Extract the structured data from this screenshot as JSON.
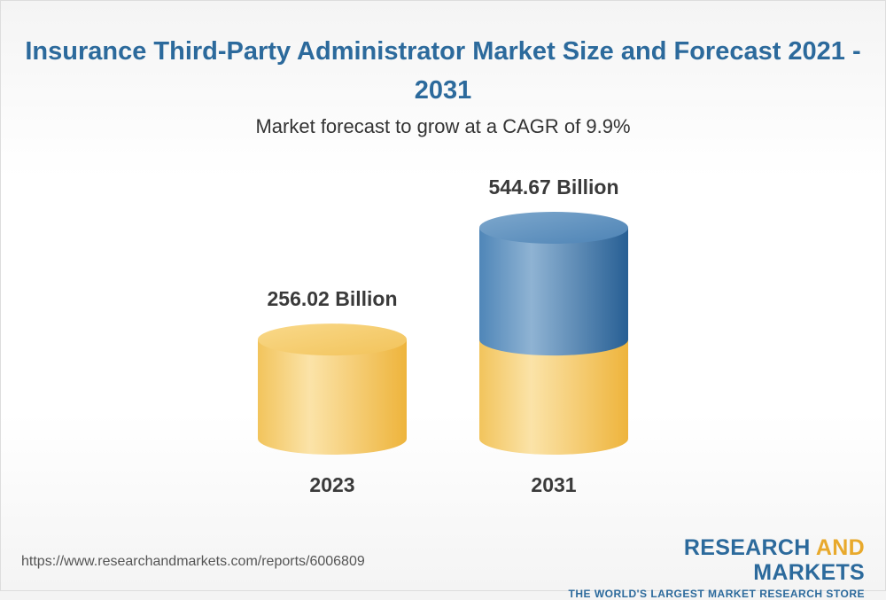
{
  "title": "Insurance Third-Party Administrator Market Size and Forecast 2021 - 2031",
  "subtitle": "Market forecast to grow at a CAGR of 9.9%",
  "chart_data": {
    "type": "bar",
    "categories": [
      "2023",
      "2031"
    ],
    "values": [
      256.02,
      544.67
    ],
    "value_labels": [
      "256.02 Billion",
      "544.67 Billion"
    ],
    "title": "Insurance Third-Party Administrator Market Size and Forecast 2021 - 2031",
    "subtitle": "Market forecast to grow at a CAGR of 9.9%",
    "xlabel": "",
    "ylabel": "",
    "grid": false,
    "colors": {
      "base": "#f0be52",
      "growth": "#2f6fa3"
    }
  },
  "footer": {
    "source_url": "https://www.researchandmarkets.com/reports/6006809",
    "brand_part1": "RESEARCH ",
    "brand_part2": "AND",
    "brand_part3": " MARKETS",
    "brand_tagline": "THE WORLD'S LARGEST MARKET RESEARCH STORE"
  }
}
